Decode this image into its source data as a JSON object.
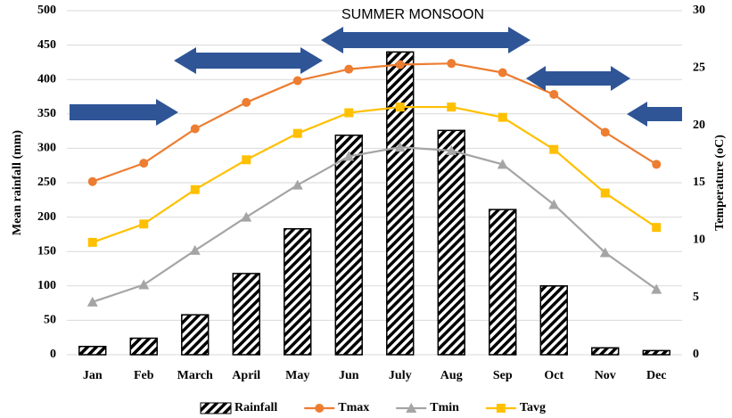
{
  "chart_data": {
    "type": "bar",
    "annotation": "SUMMER MONSOON",
    "ylabel": "Mean rainfall (mm)",
    "y2label": "Temperature (oC)",
    "categories": [
      "Jan",
      "Feb",
      "March",
      "April",
      "May",
      "Jun",
      "July",
      "Aug",
      "Sep",
      "Oct",
      "Nov",
      "Dec"
    ],
    "series": [
      {
        "name": "Rainfall",
        "kind": "bar",
        "color": "#000000",
        "values": [
          12,
          24,
          58,
          118,
          183,
          319,
          440,
          326,
          211,
          100,
          10,
          6
        ]
      },
      {
        "name": "Tmax",
        "kind": "line",
        "marker": "circle",
        "axis": "y2",
        "color": "#ed7d31",
        "values": [
          15.1,
          16.7,
          19.7,
          22.0,
          23.9,
          24.9,
          25.3,
          25.4,
          24.6,
          22.7,
          19.4,
          16.6
        ]
      },
      {
        "name": "Tmin",
        "kind": "line",
        "marker": "triangle",
        "axis": "y2",
        "color": "#a5a5a5",
        "values": [
          4.6,
          6.1,
          9.1,
          12.0,
          14.8,
          17.3,
          18.1,
          17.8,
          16.6,
          13.1,
          8.9,
          5.7
        ]
      },
      {
        "name": "Tavg",
        "kind": "line",
        "marker": "square",
        "axis": "y2",
        "color": "#ffc000",
        "values": [
          9.8,
          11.4,
          14.4,
          17.0,
          19.3,
          21.1,
          21.6,
          21.6,
          20.7,
          17.9,
          14.1,
          11.1
        ]
      }
    ],
    "ylim": [
      0,
      500
    ],
    "yticks": [
      0,
      50,
      100,
      150,
      200,
      250,
      300,
      350,
      400,
      450,
      500
    ],
    "y2lim": [
      0,
      30
    ],
    "y2ticks": [
      0,
      5,
      10,
      15,
      20,
      25,
      30
    ],
    "grid": true,
    "legend": "bottom"
  }
}
